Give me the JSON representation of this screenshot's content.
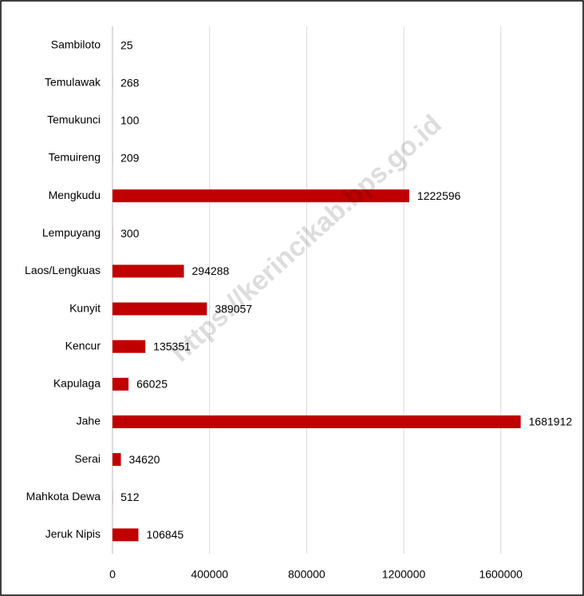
{
  "chart_data": {
    "type": "bar",
    "orientation": "horizontal",
    "categories": [
      "Sambiloto",
      "Temulawak",
      "Temukunci",
      "Temuireng",
      "Mengkudu",
      "Lempuyang",
      "Laos/Lengkuas",
      "Kunyit",
      "Kencur",
      "Kapulaga",
      "Jahe",
      "Serai",
      "Mahkota Dewa",
      "Jeruk Nipis"
    ],
    "values": [
      25,
      268,
      100,
      209,
      1222596,
      300,
      294288,
      389057,
      135351,
      66025,
      1681912,
      34620,
      512,
      106845
    ],
    "color": "#c00000",
    "xlim": [
      0,
      1900000
    ],
    "xticks": [
      0,
      400000,
      800000,
      1200000,
      1600000
    ],
    "grid": true,
    "watermark": "https://kerincikab.bps.go.id"
  }
}
